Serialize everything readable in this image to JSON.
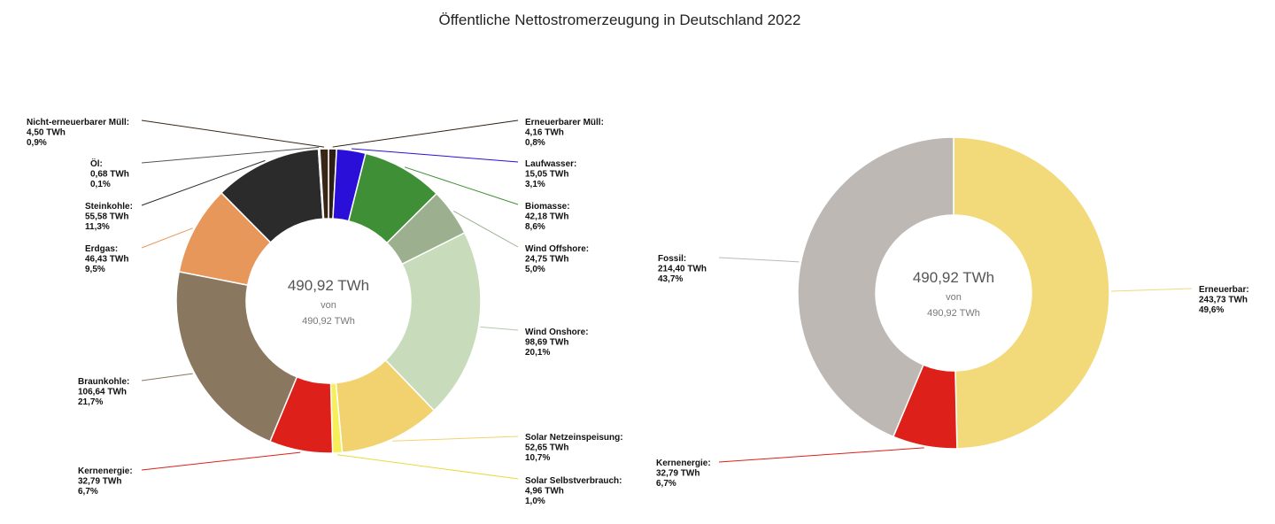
{
  "title": "Öffentliche Nettostromerzeugung in Deutschland 2022",
  "chart_data": [
    {
      "type": "pie",
      "variant": "donut",
      "center_text": {
        "value": "490,92 TWh",
        "von": "von",
        "total": "490,92 TWh"
      },
      "series": [
        {
          "name": "Erneuerbarer Müll",
          "value": 4.16,
          "value_label": "4,16 TWh",
          "percent": "0,8%",
          "color": "#2e1f14"
        },
        {
          "name": "Laufwasser",
          "value": 15.05,
          "value_label": "15,05 TWh",
          "percent": "3,1%",
          "color": "#2a0fd8"
        },
        {
          "name": "Biomasse",
          "value": 42.18,
          "value_label": "42,18 TWh",
          "percent": "8,6%",
          "color": "#3f8f36"
        },
        {
          "name": "Wind Offshore",
          "value": 24.75,
          "value_label": "24,75 TWh",
          "percent": "5,0%",
          "color": "#9caf8e"
        },
        {
          "name": "Wind Onshore",
          "value": 98.69,
          "value_label": "98,69 TWh",
          "percent": "20,1%",
          "color": "#c8dcbc"
        },
        {
          "name": "Solar Netzeinspeisung",
          "value": 52.65,
          "value_label": "52,65 TWh",
          "percent": "10,7%",
          "color": "#f2d26e"
        },
        {
          "name": "Solar Selbstverbrauch",
          "value": 4.96,
          "value_label": "4,96 TWh",
          "percent": "1,0%",
          "color": "#f7ef5a"
        },
        {
          "name": "Kernenergie",
          "value": 32.79,
          "value_label": "32,79 TWh",
          "percent": "6,7%",
          "color": "#dd2019"
        },
        {
          "name": "Braunkohle",
          "value": 106.64,
          "value_label": "106,64 TWh",
          "percent": "21,7%",
          "color": "#8a7760"
        },
        {
          "name": "Erdgas",
          "value": 46.43,
          "value_label": "46,43 TWh",
          "percent": "9,5%",
          "color": "#e8975a"
        },
        {
          "name": "Steinkohle",
          "value": 55.58,
          "value_label": "55,58 TWh",
          "percent": "11,3%",
          "color": "#2b2b2b"
        },
        {
          "name": "Öl",
          "value": 0.68,
          "value_label": "0,68 TWh",
          "percent": "0,1%",
          "color": "#555555"
        },
        {
          "name": "Nicht-erneuerbarer Müll",
          "value": 4.5,
          "value_label": "4,50 TWh",
          "percent": "0,9%",
          "color": "#3a2614"
        }
      ]
    },
    {
      "type": "pie",
      "variant": "donut",
      "center_text": {
        "value": "490,92 TWh",
        "von": "von",
        "total": "490,92 TWh"
      },
      "series": [
        {
          "name": "Erneuerbar",
          "value": 243.73,
          "value_label": "243,73 TWh",
          "percent": "49,6%",
          "color": "#f2d97a"
        },
        {
          "name": "Kernenergie",
          "value": 32.79,
          "value_label": "32,79 TWh",
          "percent": "6,7%",
          "color": "#dd2019"
        },
        {
          "name": "Fossil",
          "value": 214.4,
          "value_label": "214,40 TWh",
          "percent": "43,7%",
          "color": "#bdb8b3"
        }
      ]
    }
  ]
}
